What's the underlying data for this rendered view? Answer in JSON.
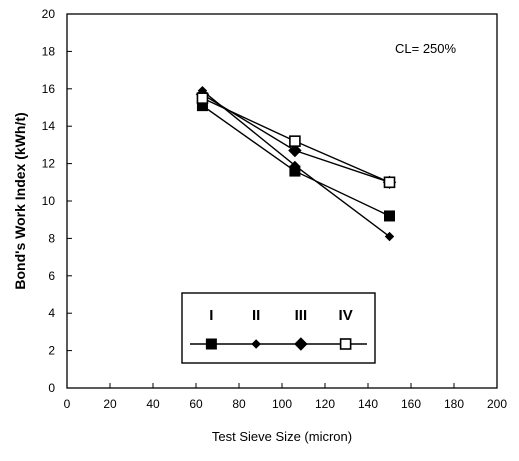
{
  "chart_data": {
    "type": "line",
    "title": "",
    "xlabel": "Test Sieve Size (micron)",
    "ylabel": "Bond's Work Index (kWh/t)",
    "xlim": [
      0,
      200
    ],
    "ylim": [
      0,
      20
    ],
    "xticks": [
      "0",
      "20",
      "40",
      "60",
      "80",
      "100",
      "120",
      "140",
      "160",
      "180",
      "200"
    ],
    "yticks": [
      "0",
      "2",
      "4",
      "6",
      "8",
      "10",
      "12",
      "14",
      "16",
      "18",
      "20"
    ],
    "grid": false,
    "annotation": "CL= 250%",
    "legend_position": "bottom-center",
    "series": [
      {
        "name": "I",
        "marker": "square",
        "x": [
          63,
          106,
          150
        ],
        "y": [
          15.1,
          11.6,
          9.2
        ]
      },
      {
        "name": "II",
        "marker": "small-diamond",
        "x": [
          63,
          106,
          150
        ],
        "y": [
          15.9,
          11.9,
          8.1
        ]
      },
      {
        "name": "III",
        "marker": "diamond",
        "x": [
          63,
          106,
          150
        ],
        "y": [
          15.7,
          12.7,
          11.0
        ]
      },
      {
        "name": "IV",
        "marker": "open-square",
        "x": [
          63,
          106,
          150
        ],
        "y": [
          15.5,
          13.2,
          11.0
        ]
      }
    ]
  }
}
